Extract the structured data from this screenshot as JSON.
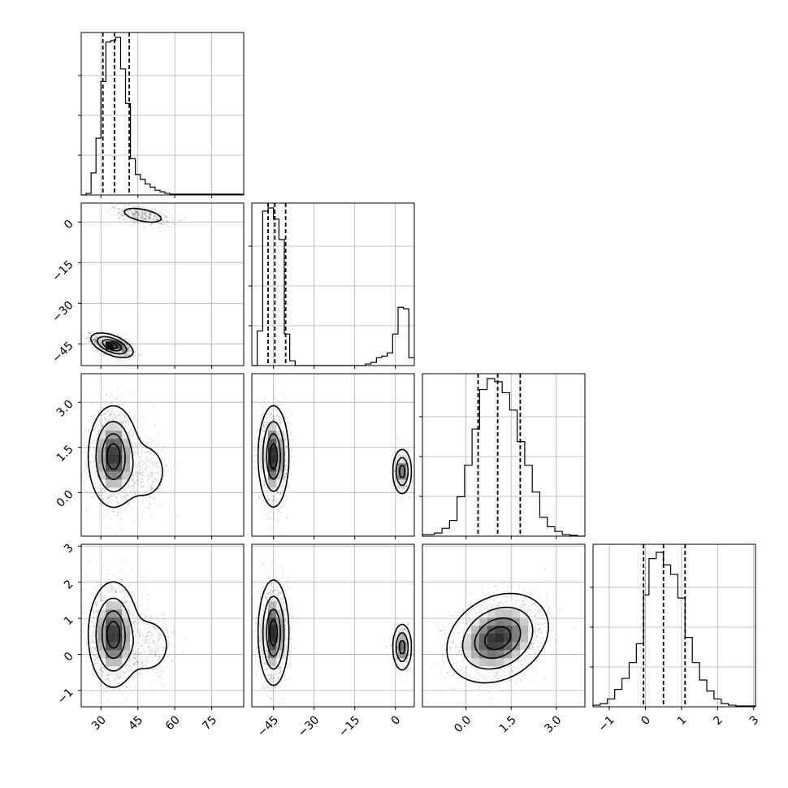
{
  "chart_data": {
    "type": "corner",
    "parameters": [
      {
        "range": [
          22,
          88
        ],
        "ticks": [
          30,
          45,
          60,
          75
        ],
        "tick_labels": [
          "30",
          "45",
          "60",
          "75"
        ],
        "quantiles": [
          30.8,
          35.5,
          41.5
        ]
      },
      {
        "range": [
          -53,
          7
        ],
        "ticks": [
          -45,
          -30,
          -15,
          0
        ],
        "tick_labels": [
          "−45",
          "−30",
          "−15",
          "0"
        ],
        "quantiles": [
          -47.0,
          -44.5,
          -40.5
        ]
      },
      {
        "range": [
          -1.45,
          3.95
        ],
        "ticks": [
          0.0,
          1.5,
          3.0
        ],
        "tick_labels": [
          "0.0",
          "1.5",
          "3.0"
        ],
        "quantiles": [
          0.4,
          1.05,
          1.8
        ]
      },
      {
        "range": [
          -1.45,
          3.05
        ],
        "ticks": [
          -1,
          0,
          1,
          2,
          3
        ],
        "tick_labels": [
          "−1",
          "0",
          "1",
          "2",
          "3"
        ],
        "quantiles": [
          -0.05,
          0.5,
          1.1
        ]
      }
    ],
    "histograms": [
      {
        "param": 0,
        "bins": [
          [
            22,
            0.0
          ],
          [
            24,
            0.01
          ],
          [
            26,
            0.14
          ],
          [
            28,
            0.36
          ],
          [
            30,
            0.72
          ],
          [
            32,
            0.97
          ],
          [
            34,
            0.98
          ],
          [
            36,
            1.0
          ],
          [
            38,
            0.8
          ],
          [
            40,
            0.58
          ],
          [
            42,
            0.23
          ],
          [
            44,
            0.13
          ],
          [
            46,
            0.1
          ],
          [
            48,
            0.07
          ],
          [
            50,
            0.05
          ],
          [
            52,
            0.03
          ],
          [
            54,
            0.02
          ],
          [
            56,
            0.01
          ],
          [
            58,
            0.005
          ]
        ]
      },
      {
        "param": 1,
        "bins": [
          [
            -53,
            0.0
          ],
          [
            -51,
            0.22
          ],
          [
            -49,
            0.98
          ],
          [
            -47,
            1.0
          ],
          [
            -45,
            0.93
          ],
          [
            -43,
            0.8
          ],
          [
            -41,
            0.2
          ],
          [
            -39,
            0.03
          ],
          [
            -37,
            0.0
          ],
          [
            -11,
            0.01
          ],
          [
            -9,
            0.02
          ],
          [
            -7,
            0.05
          ],
          [
            -5,
            0.06
          ],
          [
            -3,
            0.08
          ],
          [
            -1,
            0.2
          ],
          [
            1,
            0.37
          ],
          [
            3,
            0.36
          ],
          [
            5,
            0.05
          ]
        ]
      },
      {
        "param": 2,
        "bins": [
          [
            -1.45,
            0.01
          ],
          [
            -1.05,
            0.02
          ],
          [
            -0.8,
            0.05
          ],
          [
            -0.55,
            0.1
          ],
          [
            -0.3,
            0.25
          ],
          [
            -0.05,
            0.45
          ],
          [
            0.2,
            0.68
          ],
          [
            0.45,
            0.93
          ],
          [
            0.7,
            1.0
          ],
          [
            0.95,
            0.98
          ],
          [
            1.2,
            0.91
          ],
          [
            1.45,
            0.8
          ],
          [
            1.7,
            0.6
          ],
          [
            1.95,
            0.45
          ],
          [
            2.2,
            0.28
          ],
          [
            2.45,
            0.12
          ],
          [
            2.7,
            0.06
          ],
          [
            2.95,
            0.03
          ],
          [
            3.2,
            0.01
          ],
          [
            3.45,
            0.005
          ],
          [
            3.7,
            0.0
          ]
        ]
      },
      {
        "param": 3,
        "bins": [
          [
            -1.45,
            0.01
          ],
          [
            -1.25,
            0.02
          ],
          [
            -1.05,
            0.05
          ],
          [
            -0.85,
            0.11
          ],
          [
            -0.65,
            0.18
          ],
          [
            -0.45,
            0.28
          ],
          [
            -0.25,
            0.4
          ],
          [
            -0.05,
            0.71
          ],
          [
            0.1,
            0.94
          ],
          [
            0.3,
            0.98
          ],
          [
            0.5,
            0.9
          ],
          [
            0.7,
            0.84
          ],
          [
            0.9,
            0.69
          ],
          [
            1.1,
            0.44
          ],
          [
            1.3,
            0.28
          ],
          [
            1.5,
            0.17
          ],
          [
            1.7,
            0.1
          ],
          [
            1.9,
            0.05
          ],
          [
            2.1,
            0.02
          ],
          [
            2.3,
            0.01
          ],
          [
            2.5,
            0.005
          ]
        ]
      }
    ],
    "joint_components": [
      {
        "x": 0,
        "y": 1,
        "cx": 34.5,
        "cy": -45.5,
        "sx": 3.8,
        "sy": 2.0,
        "rho": -0.55,
        "w": 0.78
      },
      {
        "x": 0,
        "y": 1,
        "cx": 47.0,
        "cy": 2.5,
        "sx": 6.0,
        "sy": 2.0,
        "rho": -0.5,
        "w": 0.22
      },
      {
        "x": 0,
        "y": 2,
        "cx": 35.0,
        "cy": 1.2,
        "sx": 4.5,
        "sy": 0.75,
        "rho": 0.0,
        "w": 0.85
      },
      {
        "x": 0,
        "y": 2,
        "cx": 48.0,
        "cy": 0.7,
        "sx": 5.5,
        "sy": 0.6,
        "rho": 0.0,
        "w": 0.15
      },
      {
        "x": 0,
        "y": 3,
        "cx": 35.0,
        "cy": 0.55,
        "sx": 4.5,
        "sy": 0.65,
        "rho": 0.0,
        "w": 0.85
      },
      {
        "x": 0,
        "y": 3,
        "cx": 49.0,
        "cy": 0.25,
        "sx": 5.5,
        "sy": 0.45,
        "rho": 0.0,
        "w": 0.15
      },
      {
        "x": 1,
        "y": 2,
        "cx": -45.0,
        "cy": 1.2,
        "sx": 2.5,
        "sy": 0.75,
        "rho": 0.0,
        "w": 0.82
      },
      {
        "x": 1,
        "y": 2,
        "cx": 2.5,
        "cy": 0.7,
        "sx": 1.6,
        "sy": 0.35,
        "rho": 0.0,
        "w": 0.18
      },
      {
        "x": 1,
        "y": 3,
        "cx": -45.0,
        "cy": 0.6,
        "sx": 2.5,
        "sy": 0.65,
        "rho": 0.0,
        "w": 0.82
      },
      {
        "x": 1,
        "y": 3,
        "cx": 2.5,
        "cy": 0.2,
        "sx": 1.6,
        "sy": 0.3,
        "rho": 0.0,
        "w": 0.18
      },
      {
        "x": 2,
        "y": 3,
        "cx": 1.05,
        "cy": 0.45,
        "sx": 0.75,
        "sy": 0.55,
        "rho": 0.25,
        "w": 1.0
      }
    ],
    "contour_levels": [
      0.08,
      0.3,
      0.6,
      0.85
    ],
    "grid": true,
    "quantile_line_style": "dashed"
  }
}
